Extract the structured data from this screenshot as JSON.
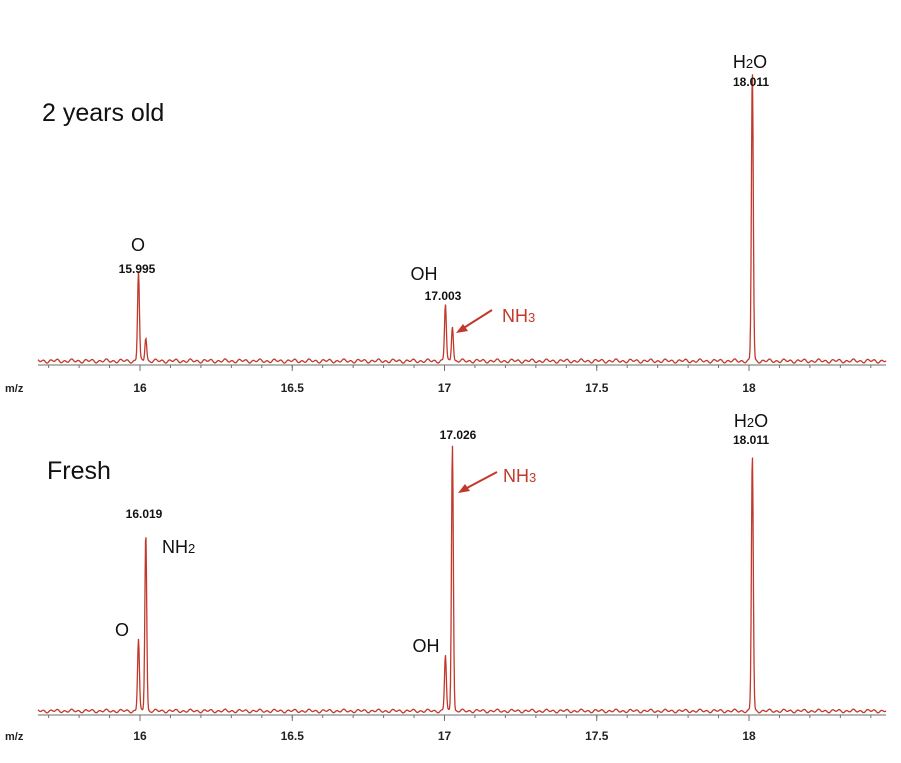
{
  "chart_data": [
    {
      "type": "line",
      "title": "2 years old",
      "xlabel": "m/z",
      "ylabel": "",
      "xlim": [
        15.67,
        18.47
      ],
      "xticks": [
        "16",
        "16.5",
        "17",
        "17.5",
        "18"
      ],
      "xtick_values": [
        16,
        16.5,
        17,
        17.5,
        18
      ],
      "series_color": "#c0392b",
      "peaks": [
        {
          "x": 15.995,
          "height": 0.3
        },
        {
          "x": 16.019,
          "height": 0.08
        },
        {
          "x": 17.003,
          "height": 0.19
        },
        {
          "x": 17.026,
          "height": 0.12
        },
        {
          "x": 18.011,
          "height": 0.97
        }
      ],
      "annotations": {
        "o_label": "O",
        "o_value": "15.995",
        "oh_label": "OH",
        "oh_value": "17.003",
        "nh3_label": "NH3",
        "h2o_label": "H2O",
        "h2o_value": "18.011"
      }
    },
    {
      "type": "line",
      "title": "Fresh",
      "xlabel": "m/z",
      "ylabel": "",
      "xlim": [
        15.67,
        18.47
      ],
      "xticks": [
        "16",
        "16.5",
        "17",
        "17.5",
        "18"
      ],
      "xtick_values": [
        16,
        16.5,
        17,
        17.5,
        18
      ],
      "series_color": "#c0392b",
      "peaks": [
        {
          "x": 15.995,
          "height": 0.27
        },
        {
          "x": 16.019,
          "height": 0.67
        },
        {
          "x": 17.003,
          "height": 0.21
        },
        {
          "x": 17.026,
          "height": 1.0
        },
        {
          "x": 18.011,
          "height": 0.96
        }
      ],
      "annotations": {
        "o_label": "O",
        "oh_label": "OH",
        "nh2_label": "NH2",
        "nh2_value": "16.019",
        "nh3_label": "NH3",
        "nh3_value": "17.026",
        "h2o_label": "H2O",
        "h2o_value": "18.011"
      }
    }
  ],
  "colors": {
    "trace": "#c0392b",
    "axis": "#6e6e6e",
    "annotation_red": "#c0392b"
  }
}
